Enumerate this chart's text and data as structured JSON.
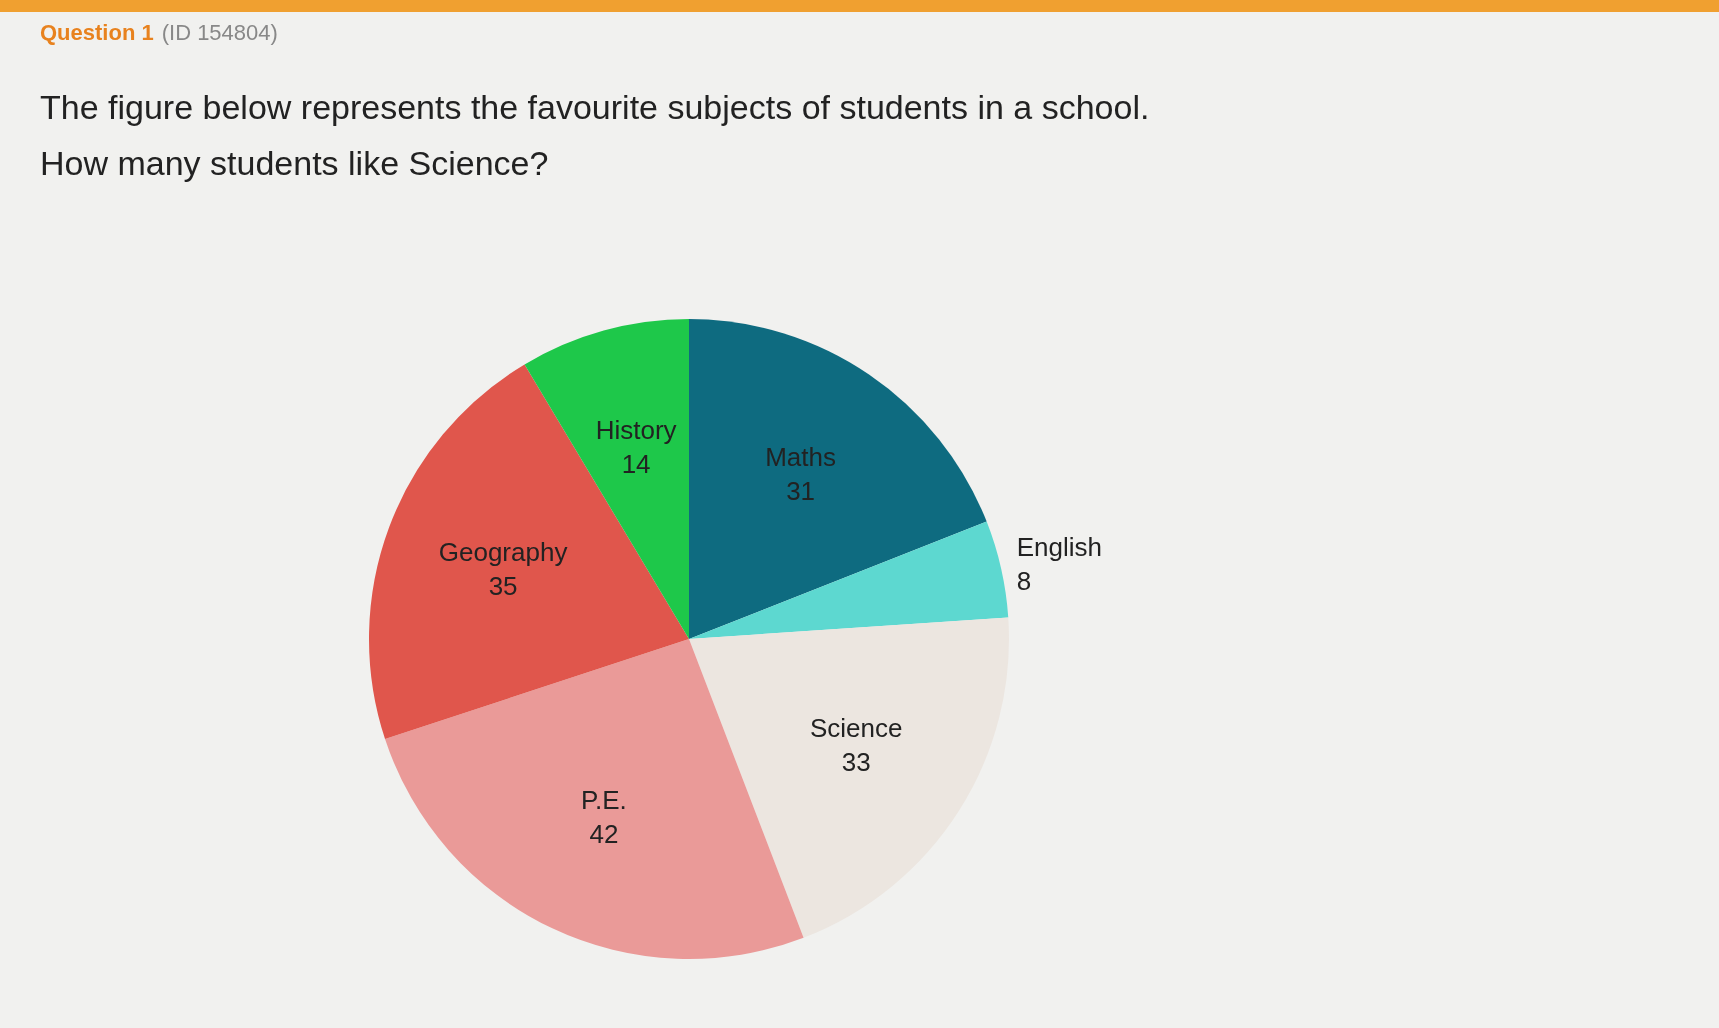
{
  "chart_data": {
    "type": "pie",
    "title": "Question 1",
    "subtitle": "(ID 154804)",
    "annotations": [
      "The figure below represents the favourite subjects of students in a school.",
      "How many students like Science?"
    ],
    "categories": [
      "Maths",
      "English",
      "Science",
      "P.E.",
      "Geography",
      "History"
    ],
    "values": [
      31,
      8,
      33,
      42,
      35,
      14
    ],
    "colors": [
      "#0e6b80",
      "#5dd8d0",
      "#ece6e0",
      "#ea9a98",
      "#e0564c",
      "#1ec84a"
    ],
    "data_labels": true,
    "legend": false
  }
}
